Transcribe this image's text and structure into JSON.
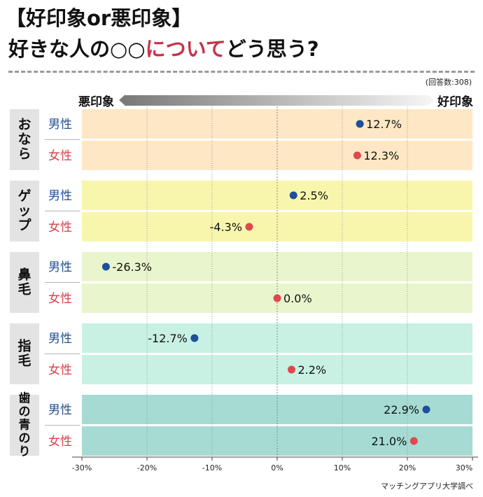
{
  "header": {
    "title_line1": "【好印象or悪印象】",
    "title_line2_pre": "好きな人の○○",
    "title_line2_highlight": "について",
    "title_line2_post": "どう思う?",
    "respondents": "(回答数:308)"
  },
  "scale": {
    "negative_label": "悪印象",
    "positive_label": "好印象"
  },
  "footer": {
    "source": "マッチングアプリ大学調べ"
  },
  "colors": {
    "male_dot": "#1e4e9c",
    "female_dot": "#e0484f",
    "male_text": "#24508f",
    "female_text": "#d8424b",
    "category_bg": "#e3e3e3"
  },
  "chart_data": {
    "type": "scatter",
    "xlim": [
      -30,
      30
    ],
    "x_ticks": [
      "-30%",
      "-20%",
      "-10%",
      "0%",
      "10%",
      "20%",
      "30%"
    ],
    "x_tick_values": [
      -30,
      -20,
      -10,
      0,
      10,
      20,
      30
    ],
    "series": [
      {
        "name": "男性",
        "key": "male"
      },
      {
        "name": "女性",
        "key": "female"
      }
    ],
    "groups": [
      {
        "category": "おなら",
        "bg": "#fde7c4",
        "rows": [
          {
            "series": "男性",
            "value": 12.7,
            "label": "12.7%"
          },
          {
            "series": "女性",
            "value": 12.3,
            "label": "12.3%"
          }
        ]
      },
      {
        "category": "ゲップ",
        "bg": "#f8f6ad",
        "rows": [
          {
            "series": "男性",
            "value": 2.5,
            "label": "2.5%"
          },
          {
            "series": "女性",
            "value": -4.3,
            "label": "-4.3%"
          }
        ]
      },
      {
        "category": "鼻毛",
        "bg": "#e9f5cc",
        "rows": [
          {
            "series": "男性",
            "value": -26.3,
            "label": "-26.3%"
          },
          {
            "series": "女性",
            "value": 0.0,
            "label": "0.0%"
          }
        ]
      },
      {
        "category": "指毛",
        "bg": "#c8f0e3",
        "rows": [
          {
            "series": "男性",
            "value": -12.7,
            "label": "-12.7%"
          },
          {
            "series": "女性",
            "value": 2.2,
            "label": "2.2%"
          }
        ]
      },
      {
        "category": "歯の青のり",
        "bg": "#a5dbd3",
        "rows": [
          {
            "series": "男性",
            "value": 22.9,
            "label": "22.9%"
          },
          {
            "series": "女性",
            "value": 21.0,
            "label": "21.0%"
          }
        ]
      }
    ]
  }
}
